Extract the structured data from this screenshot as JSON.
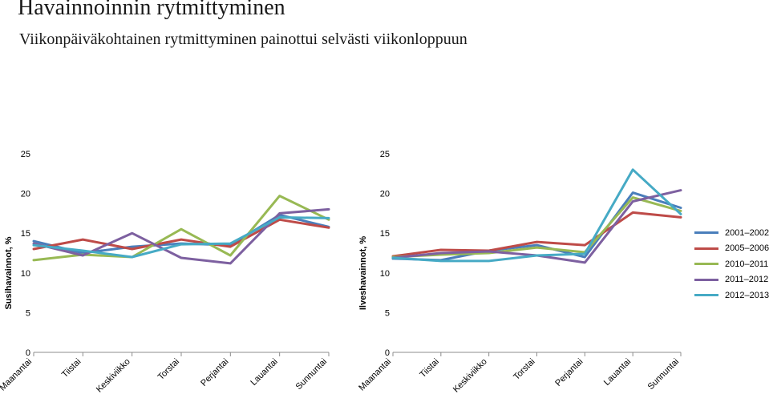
{
  "header": {
    "title": "Havainnoinnin rytmittyminen",
    "subtitle": "Viikonpäiväkohtainen rytmittyminen painottui selvästi viikonloppuun"
  },
  "colors": {
    "2001–2002": "#4a7ebb",
    "2005–2006": "#be4b48",
    "2010–2011": "#98b954",
    "2011–2012": "#7d60a0",
    "2012–2013": "#46aac5"
  },
  "legend": {
    "placement": "right",
    "items": [
      "2001–2002",
      "2005–2006",
      "2010–2011",
      "2011–2012",
      "2012–2013"
    ]
  },
  "chart_data": [
    {
      "type": "line",
      "title": "",
      "xlabel": "",
      "ylabel": "Susihavainnot, %",
      "ylim": [
        0,
        25
      ],
      "yticks": [
        0,
        5,
        10,
        15,
        20,
        25
      ],
      "grid": false,
      "categories": [
        "Maanantai",
        "Tiistai",
        "Keskiviikko",
        "Torstai",
        "Perjantai",
        "Lauantai",
        "Sunnuntai"
      ],
      "series": [
        {
          "name": "2001–2002",
          "values": [
            14.0,
            12.5,
            13.3,
            13.7,
            13.5,
            17.3,
            15.8
          ]
        },
        {
          "name": "2005–2006",
          "values": [
            13.0,
            14.2,
            13.0,
            14.2,
            13.3,
            16.7,
            15.7
          ]
        },
        {
          "name": "2010–2011",
          "values": [
            11.6,
            12.3,
            12.0,
            15.5,
            12.2,
            19.7,
            16.7
          ]
        },
        {
          "name": "2011–2012",
          "values": [
            13.7,
            12.2,
            15.0,
            11.9,
            11.2,
            17.5,
            18.0
          ]
        },
        {
          "name": "2012–2013",
          "values": [
            13.5,
            12.8,
            12.0,
            13.6,
            13.7,
            17.0,
            16.9
          ]
        }
      ]
    },
    {
      "type": "line",
      "title": "",
      "xlabel": "",
      "ylabel": "Ilveshavainnot, %",
      "ylim": [
        0,
        25
      ],
      "yticks": [
        0,
        5,
        10,
        15,
        20,
        25
      ],
      "grid": false,
      "categories": [
        "Maanantai",
        "Tiistai",
        "Keskiviikko",
        "Torstai",
        "Perjantai",
        "Lauantai",
        "Sunnuntai"
      ],
      "series": [
        {
          "name": "2001–2002",
          "values": [
            11.8,
            11.6,
            12.8,
            13.5,
            12.0,
            20.1,
            18.2
          ]
        },
        {
          "name": "2005–2006",
          "values": [
            12.1,
            12.9,
            12.8,
            13.9,
            13.5,
            17.6,
            17.0
          ]
        },
        {
          "name": "2010–2011",
          "values": [
            12.0,
            12.3,
            12.5,
            13.2,
            12.6,
            19.5,
            17.8
          ]
        },
        {
          "name": "2011–2012",
          "values": [
            11.9,
            12.5,
            12.7,
            12.2,
            11.3,
            19.0,
            20.4
          ]
        },
        {
          "name": "2012–2013",
          "values": [
            11.9,
            11.5,
            11.5,
            12.2,
            12.4,
            23.0,
            17.4
          ]
        }
      ]
    }
  ]
}
